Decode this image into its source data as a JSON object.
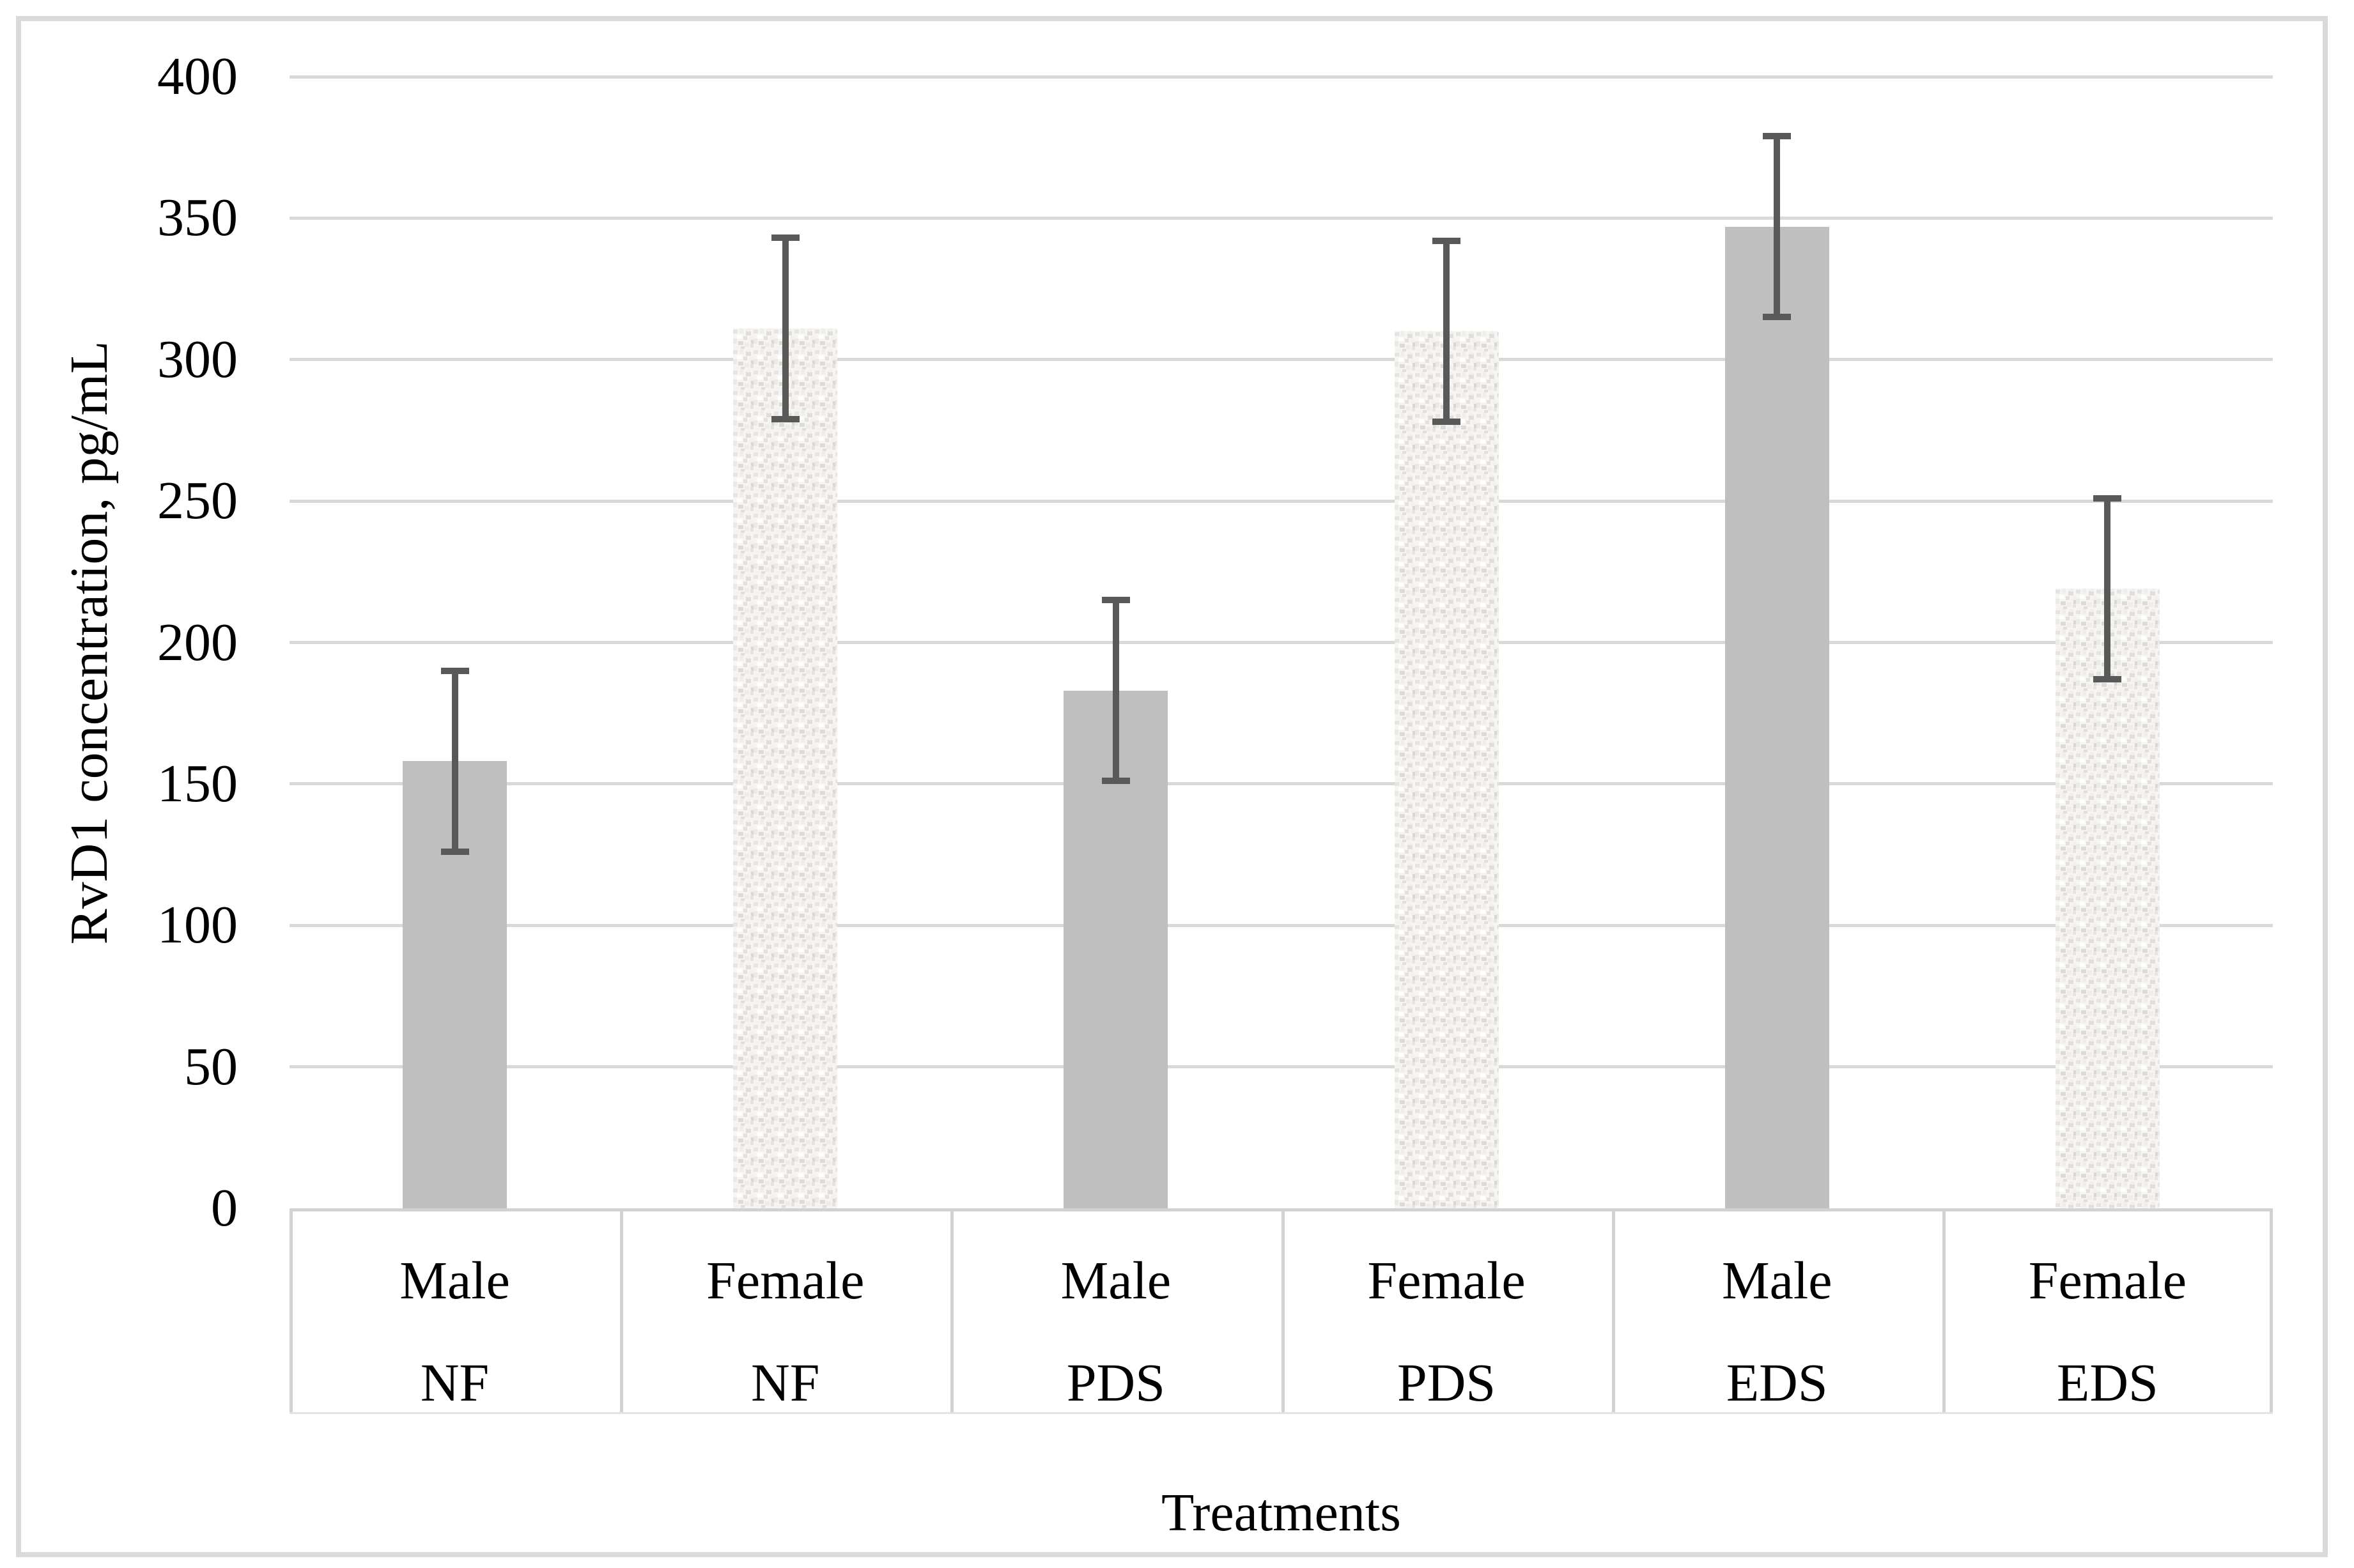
{
  "chart_data": {
    "type": "bar",
    "title": "",
    "xlabel": "Treatments",
    "ylabel": "RvD1 concentration, pg/mL",
    "ylim": [
      0,
      400
    ],
    "ytick_step": 50,
    "yticks": [
      400,
      350,
      300,
      250,
      200,
      150,
      100,
      50,
      0
    ],
    "grid": true,
    "legend_position": "none",
    "categories": [
      "Male NF",
      "Female NF",
      "Male PDS",
      "Female PDS",
      "Male EDS",
      "Female EDS"
    ],
    "bars": [
      {
        "gender": "Male",
        "treatment": "NF",
        "value": 158,
        "err_low": 126,
        "err_high": 190,
        "fill": "solid"
      },
      {
        "gender": "Female",
        "treatment": "NF",
        "value": 311,
        "err_low": 279,
        "err_high": 343,
        "fill": "speckled"
      },
      {
        "gender": "Male",
        "treatment": "PDS",
        "value": 183,
        "err_low": 151,
        "err_high": 215,
        "fill": "solid"
      },
      {
        "gender": "Female",
        "treatment": "PDS",
        "value": 310,
        "err_low": 278,
        "err_high": 342,
        "fill": "speckled"
      },
      {
        "gender": "Male",
        "treatment": "EDS",
        "value": 347,
        "err_low": 315,
        "err_high": 379,
        "fill": "solid"
      },
      {
        "gender": "Female",
        "treatment": "EDS",
        "value": 219,
        "err_low": 187,
        "err_high": 251,
        "fill": "speckled"
      }
    ],
    "colors": {
      "solid_bar": "#bfbfbf",
      "speckle_base": "#f6f5f2",
      "speckle_dot": "#d9d8d5",
      "error_bar": "#595959",
      "gridline": "#d9d9d9",
      "axis_box_border": "#d2d2d2",
      "figure_border": "#dadada",
      "text": "#000000"
    }
  }
}
